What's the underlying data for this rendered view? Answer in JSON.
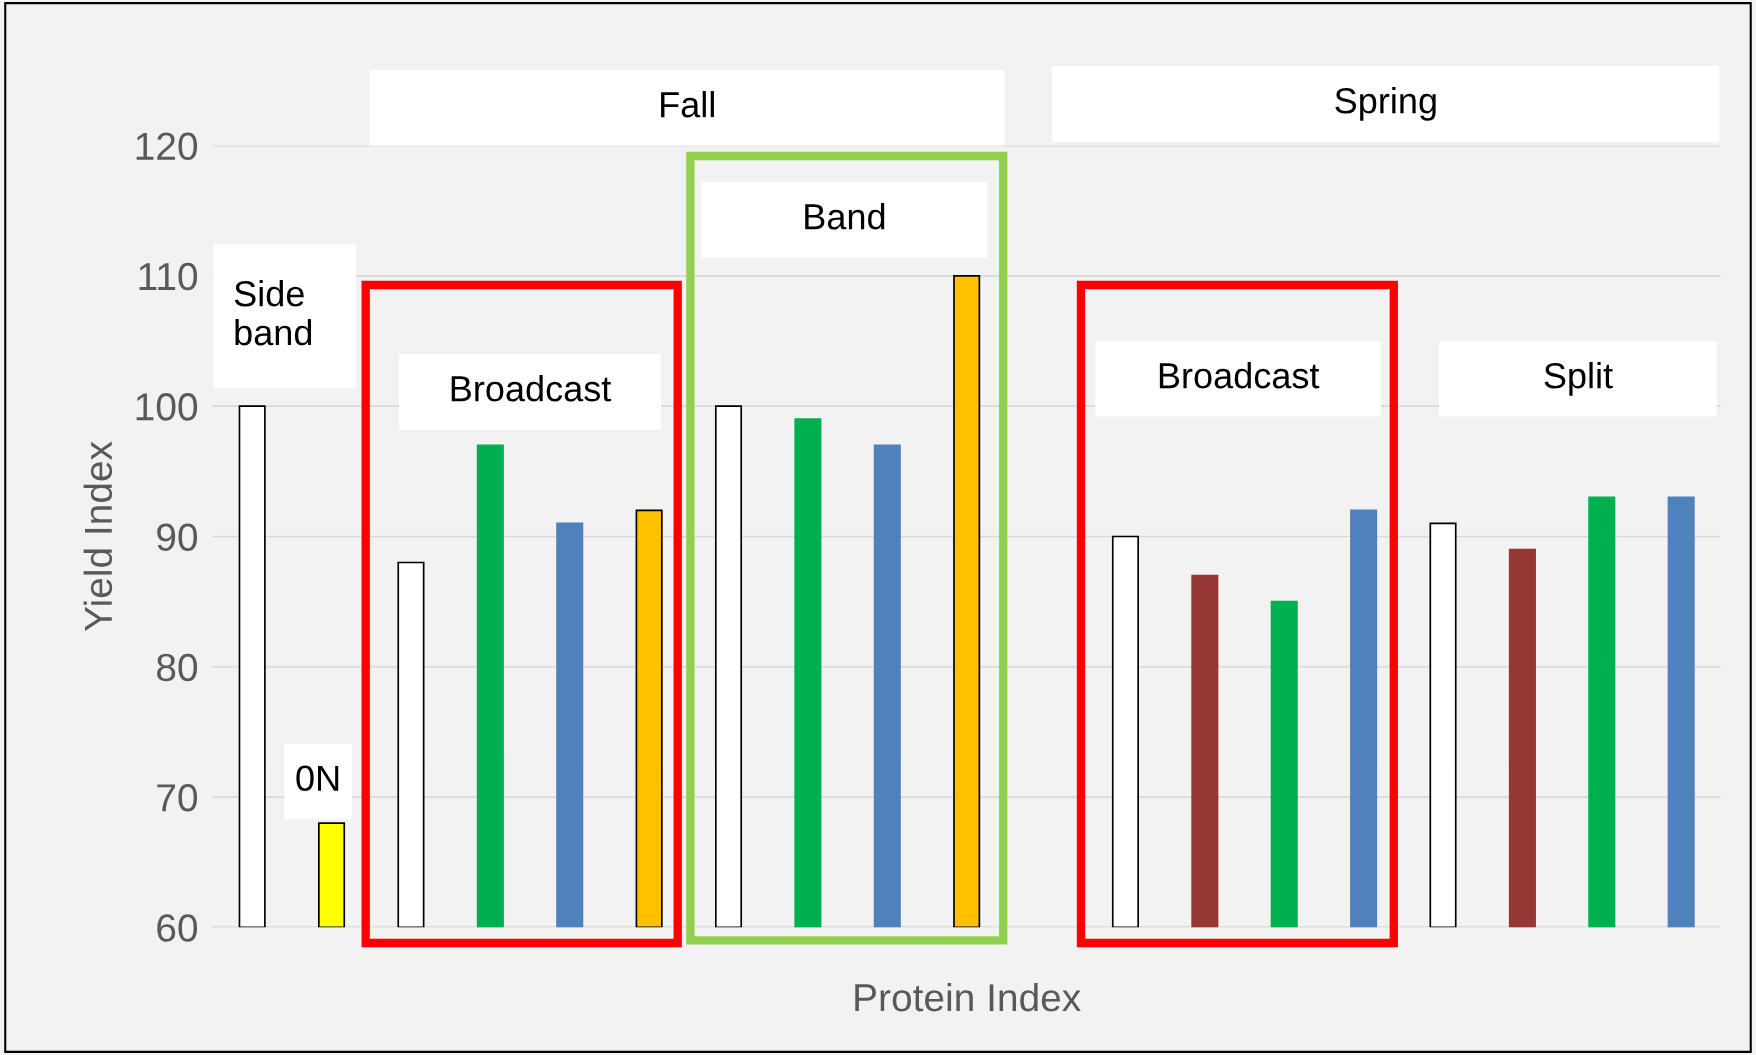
{
  "chart_data": {
    "type": "bar",
    "xlabel": "Protein Index",
    "ylabel": "Yield Index",
    "categories": [
      null,
      null,
      null,
      null,
      null,
      null,
      null,
      null,
      null,
      null,
      null,
      null,
      null,
      null,
      null,
      null,
      null,
      null,
      null
    ],
    "values": [
      100,
      68,
      88,
      97,
      91,
      92,
      100,
      99,
      97,
      110,
      null,
      90,
      87,
      85,
      92,
      91,
      89,
      93,
      93
    ],
    "colors": [
      "#ffffff",
      "#ffff00",
      "#ffffff",
      "#00b050",
      "#4f81bd",
      "#ffc000",
      "#ffffff",
      "#00b050",
      "#4f81bd",
      "#ffc000",
      "#ffffff",
      "#ffffff",
      "#953735",
      "#00b050",
      "#4f81bd",
      "#ffffff",
      "#953735",
      "#00b050",
      "#4f81bd"
    ],
    "ylim": [
      60,
      120
    ],
    "yticks": [
      60,
      70,
      80,
      90,
      100,
      110,
      120
    ],
    "grid": "y",
    "tick_labels": "y",
    "annotations": [
      "Fall",
      "Spring",
      "Side\nband",
      "0N",
      "Broadcast",
      "Band",
      "Broadcast",
      "Split"
    ]
  }
}
